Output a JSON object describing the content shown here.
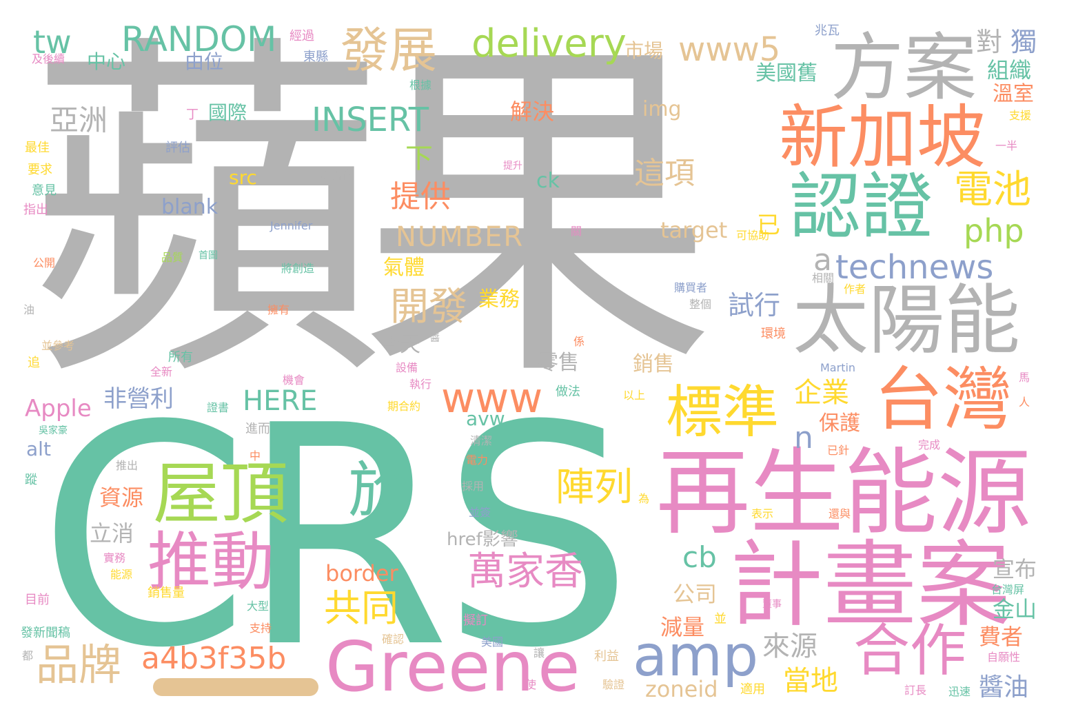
{
  "palette": {
    "green": "#66c2a5",
    "orange": "#fc8d62",
    "blue": "#8da0cb",
    "pink": "#e78ac3",
    "lime": "#a6d854",
    "yellow": "#ffd92f",
    "tan": "#e5c494",
    "gray": "#b3b3b3"
  },
  "words": [
    {
      "text": "蘋果",
      "color": "gray"
    },
    {
      "text": "CRS",
      "color": "green"
    },
    {
      "text": "再生能源",
      "color": "pink"
    },
    {
      "text": "計畫案",
      "color": "pink"
    },
    {
      "text": "方案",
      "color": "gray"
    },
    {
      "text": "新加坡",
      "color": "orange"
    },
    {
      "text": "認證",
      "color": "green"
    },
    {
      "text": "太陽能",
      "color": "gray"
    },
    {
      "text": "台灣",
      "color": "orange"
    },
    {
      "text": "Green",
      "color": "pink"
    },
    {
      "text": "e",
      "color": "pink"
    },
    {
      "text": "屋頂",
      "color": "lime"
    },
    {
      "text": "推動",
      "color": "pink"
    },
    {
      "text": "於",
      "color": "green"
    },
    {
      "text": "amp",
      "color": "blue"
    },
    {
      "text": "合作",
      "color": "pink"
    },
    {
      "text": "標準",
      "color": "yellow"
    },
    {
      "text": "www",
      "color": "orange"
    },
    {
      "text": "發展",
      "color": "tan"
    },
    {
      "text": "delivery",
      "color": "lime"
    },
    {
      "text": "RANDOM",
      "color": "green"
    },
    {
      "text": "tw",
      "color": "green"
    },
    {
      "text": "www5",
      "color": "tan"
    },
    {
      "text": "INSERT",
      "color": "green"
    },
    {
      "text": "technews",
      "color": "blue"
    },
    {
      "text": "a4b3f35b",
      "color": "orange"
    },
    {
      "text": "品牌",
      "color": "tan"
    },
    {
      "text": "萬家香",
      "color": "pink"
    },
    {
      "text": "共同",
      "color": "yellow"
    },
    {
      "text": "電池",
      "color": "yellow"
    },
    {
      "text": "php",
      "color": "lime"
    },
    {
      "text": "cb",
      "color": "green"
    },
    {
      "text": "開發",
      "color": "tan"
    },
    {
      "text": "陣列",
      "color": "yellow"
    },
    {
      "text": "亞洲",
      "color": "gray"
    },
    {
      "text": "NUMBER",
      "color": "tan"
    },
    {
      "text": "提供",
      "color": "orange"
    },
    {
      "text": "這項",
      "color": "tan"
    },
    {
      "text": "HERE",
      "color": "green"
    },
    {
      "text": "企業",
      "color": "yellow"
    },
    {
      "text": "Apple",
      "color": "pink"
    },
    {
      "text": "a",
      "color": "gray"
    },
    {
      "text": "n",
      "color": "blue"
    },
    {
      "text": "來源",
      "color": "gray"
    },
    {
      "text": "當地",
      "color": "yellow"
    },
    {
      "text": "醬油",
      "color": "blue"
    },
    {
      "text": "金山",
      "color": "green"
    },
    {
      "text": "費者",
      "color": "orange"
    },
    {
      "text": "宣布",
      "color": "gray"
    },
    {
      "text": "試行",
      "color": "blue"
    },
    {
      "text": "非營利",
      "color": "blue"
    },
    {
      "text": "資源",
      "color": "orange"
    },
    {
      "text": "立消",
      "color": "gray"
    },
    {
      "text": "border",
      "color": "orange"
    },
    {
      "text": "公司",
      "color": "tan"
    },
    {
      "text": "減量",
      "color": "orange"
    },
    {
      "text": "zoneid",
      "color": "tan"
    },
    {
      "text": "blank",
      "color": "blue"
    },
    {
      "text": "src",
      "color": "yellow"
    },
    {
      "text": "ck",
      "color": "green"
    },
    {
      "text": "img",
      "color": "tan"
    },
    {
      "text": "target",
      "color": "tan"
    },
    {
      "text": "解決",
      "color": "orange"
    },
    {
      "text": "市場",
      "color": "tan"
    },
    {
      "text": "美國舊",
      "color": "green"
    },
    {
      "text": "對",
      "color": "gray"
    },
    {
      "text": "獨",
      "color": "blue"
    },
    {
      "text": "組織",
      "color": "green"
    },
    {
      "text": "溫室",
      "color": "orange"
    },
    {
      "text": "中心",
      "color": "green"
    },
    {
      "text": "由位",
      "color": "blue"
    },
    {
      "text": "國際",
      "color": "green"
    },
    {
      "text": "下",
      "color": "lime"
    },
    {
      "text": "已",
      "color": "yellow"
    },
    {
      "text": "氣體",
      "color": "yellow"
    },
    {
      "text": "業務",
      "color": "yellow"
    },
    {
      "text": "今天",
      "color": "gray"
    },
    {
      "text": "零售",
      "color": "gray"
    },
    {
      "text": "銷售",
      "color": "tan"
    },
    {
      "text": "保護",
      "color": "orange"
    },
    {
      "text": "avw",
      "color": "green"
    },
    {
      "text": "alt",
      "color": "blue"
    },
    {
      "text": "href影響",
      "color": "gray"
    },
    {
      "text": "清潔",
      "color": "gray"
    },
    {
      "text": "電力",
      "color": "orange"
    },
    {
      "text": "採用",
      "color": "gray"
    },
    {
      "text": "並簽",
      "color": "blue"
    },
    {
      "text": "Jennifer",
      "color": "blue"
    },
    {
      "text": "Martin",
      "color": "blue"
    },
    {
      "text": "經過",
      "color": "pink"
    },
    {
      "text": "東縣",
      "color": "blue"
    },
    {
      "text": "及後續",
      "color": "pink"
    },
    {
      "text": "根據",
      "color": "green"
    },
    {
      "text": "兆瓦",
      "color": "blue"
    },
    {
      "text": "支援",
      "color": "yellow"
    },
    {
      "text": "一半",
      "color": "pink"
    },
    {
      "text": "丁",
      "color": "pink"
    },
    {
      "text": "評估",
      "color": "blue"
    },
    {
      "text": "最佳",
      "color": "yellow"
    },
    {
      "text": "要求",
      "color": "yellow"
    },
    {
      "text": "意見",
      "color": "green"
    },
    {
      "text": "指出",
      "color": "pink"
    },
    {
      "text": "銷售商",
      "color": "gray"
    },
    {
      "text": "提升",
      "color": "pink"
    },
    {
      "text": "關",
      "color": "pink"
    },
    {
      "text": "可協助",
      "color": "yellow"
    },
    {
      "text": "品質",
      "color": "lime"
    },
    {
      "text": "首圖",
      "color": "green"
    },
    {
      "text": "公開",
      "color": "orange"
    },
    {
      "text": "將創造",
      "color": "green"
    },
    {
      "text": "購買者",
      "color": "blue"
    },
    {
      "text": "整個",
      "color": "gray"
    },
    {
      "text": "相關",
      "color": "gray"
    },
    {
      "text": "作者",
      "color": "yellow"
    },
    {
      "text": "油",
      "color": "gray"
    },
    {
      "text": "擁有",
      "color": "orange"
    },
    {
      "text": "醬",
      "color": "gray"
    },
    {
      "text": "係",
      "color": "orange"
    },
    {
      "text": "環境",
      "color": "orange"
    },
    {
      "text": "並參考",
      "color": "tan"
    },
    {
      "text": "追",
      "color": "yellow"
    },
    {
      "text": "所有",
      "color": "green"
    },
    {
      "text": "全新",
      "color": "pink"
    },
    {
      "text": "設備",
      "color": "pink"
    },
    {
      "text": "執行",
      "color": "pink"
    },
    {
      "text": "機會",
      "color": "pink"
    },
    {
      "text": "做法",
      "color": "green"
    },
    {
      "text": "以上",
      "color": "yellow"
    },
    {
      "text": "馬",
      "color": "pink"
    },
    {
      "text": "人",
      "color": "orange"
    },
    {
      "text": "證書",
      "color": "green"
    },
    {
      "text": "期合約",
      "color": "yellow"
    },
    {
      "text": "吳家豪",
      "color": "green"
    },
    {
      "text": "進而",
      "color": "gray"
    },
    {
      "text": "已針",
      "color": "orange"
    },
    {
      "text": "完成",
      "color": "pink"
    },
    {
      "text": "中",
      "color": "orange"
    },
    {
      "text": "推出",
      "color": "gray"
    },
    {
      "text": "蹤",
      "color": "green"
    },
    {
      "text": "為",
      "color": "yellow"
    },
    {
      "text": "表示",
      "color": "yellow"
    },
    {
      "text": "還與",
      "color": "orange"
    },
    {
      "text": "實務",
      "color": "pink"
    },
    {
      "text": "能源",
      "color": "yellow"
    },
    {
      "text": "台灣屏",
      "color": "green"
    },
    {
      "text": "目前",
      "color": "pink"
    },
    {
      "text": "銷售量",
      "color": "yellow"
    },
    {
      "text": "大型",
      "color": "green"
    },
    {
      "text": "董事",
      "color": "pink"
    },
    {
      "text": "支持",
      "color": "orange"
    },
    {
      "text": "並",
      "color": "yellow"
    },
    {
      "text": "擬訂",
      "color": "pink"
    },
    {
      "text": "發新聞稿",
      "color": "green"
    },
    {
      "text": "確認",
      "color": "tan"
    },
    {
      "text": "美國",
      "color": "blue"
    },
    {
      "text": "讓",
      "color": "gray"
    },
    {
      "text": "利益",
      "color": "tan"
    },
    {
      "text": "自願性",
      "color": "pink"
    },
    {
      "text": "都",
      "color": "gray"
    },
    {
      "text": "使",
      "color": "pink"
    },
    {
      "text": "驗證",
      "color": "tan"
    },
    {
      "text": "適用",
      "color": "yellow"
    },
    {
      "text": "訂長",
      "color": "pink"
    },
    {
      "text": "迅速",
      "color": "green"
    }
  ]
}
